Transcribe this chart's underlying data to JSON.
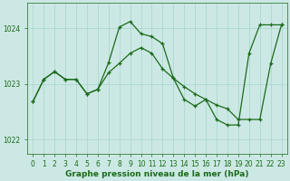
{
  "line1_x": [
    0,
    1,
    2,
    3,
    4,
    5,
    6,
    7,
    8,
    9,
    10,
    11,
    12,
    13,
    14,
    15,
    16,
    17,
    18,
    19,
    20,
    21,
    22,
    23
  ],
  "line1_y": [
    1022.68,
    1023.08,
    1023.22,
    1023.08,
    1023.08,
    1022.82,
    1022.9,
    1023.38,
    1024.02,
    1024.12,
    1023.9,
    1023.85,
    1023.72,
    1023.1,
    1022.72,
    1022.6,
    1022.72,
    1022.36,
    1022.26,
    1022.26,
    1023.55,
    1024.06,
    1024.06,
    1024.06
  ],
  "line2_x": [
    0,
    1,
    2,
    3,
    4,
    5,
    6,
    7,
    8,
    9,
    10,
    11,
    12,
    13,
    14,
    15,
    16,
    17,
    18,
    19,
    20,
    21,
    22,
    23
  ],
  "line2_y": [
    1022.68,
    1023.08,
    1023.22,
    1023.08,
    1023.08,
    1022.82,
    1022.9,
    1023.2,
    1023.37,
    1023.55,
    1023.65,
    1023.55,
    1023.27,
    1023.1,
    1022.95,
    1022.82,
    1022.72,
    1022.62,
    1022.55,
    1022.36,
    1022.36,
    1022.36,
    1023.36,
    1024.06
  ],
  "background_color": "#cce8e4",
  "grid_color": "#a8d4ce",
  "line_color": "#1a6b1a",
  "xlabel": "Graphe pression niveau de la mer (hPa)",
  "yticks": [
    1022,
    1023,
    1024
  ],
  "xticks": [
    0,
    1,
    2,
    3,
    4,
    5,
    6,
    7,
    8,
    9,
    10,
    11,
    12,
    13,
    14,
    15,
    16,
    17,
    18,
    19,
    20,
    21,
    22,
    23
  ],
  "ylim": [
    1021.75,
    1024.45
  ],
  "xlim": [
    -0.5,
    23.5
  ],
  "tick_fontsize": 5.5,
  "xlabel_fontsize": 6.5
}
